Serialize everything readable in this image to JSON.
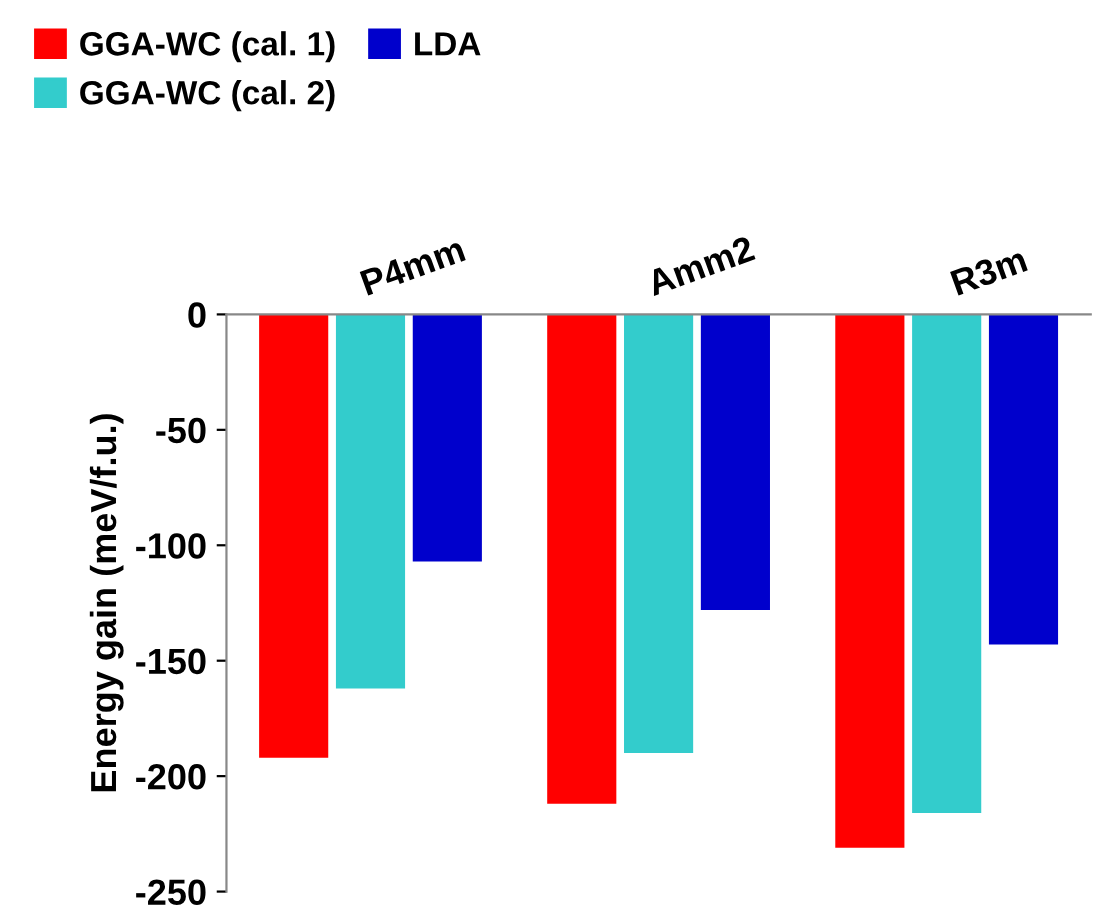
{
  "chart_data": {
    "type": "bar",
    "ylabel": "Energy gain (meV/f.u.)",
    "categories": [
      "P4mm",
      "Amm2",
      "R3m"
    ],
    "series": [
      {
        "name": "GGA-WC (cal. 1)",
        "color": "#ff0000",
        "values": [
          -192,
          -212,
          -231
        ]
      },
      {
        "name": "GGA-WC (cal. 2)",
        "color": "#33cccc",
        "values": [
          -162,
          -190,
          -216
        ]
      },
      {
        "name": "LDA",
        "color": "#0000cc",
        "values": [
          -107,
          -128,
          -143
        ]
      }
    ],
    "ylim": [
      -250,
      0
    ],
    "yticks": [
      -250,
      -200,
      -150,
      -100,
      -50,
      0
    ],
    "grid": false,
    "legend": "top left"
  }
}
